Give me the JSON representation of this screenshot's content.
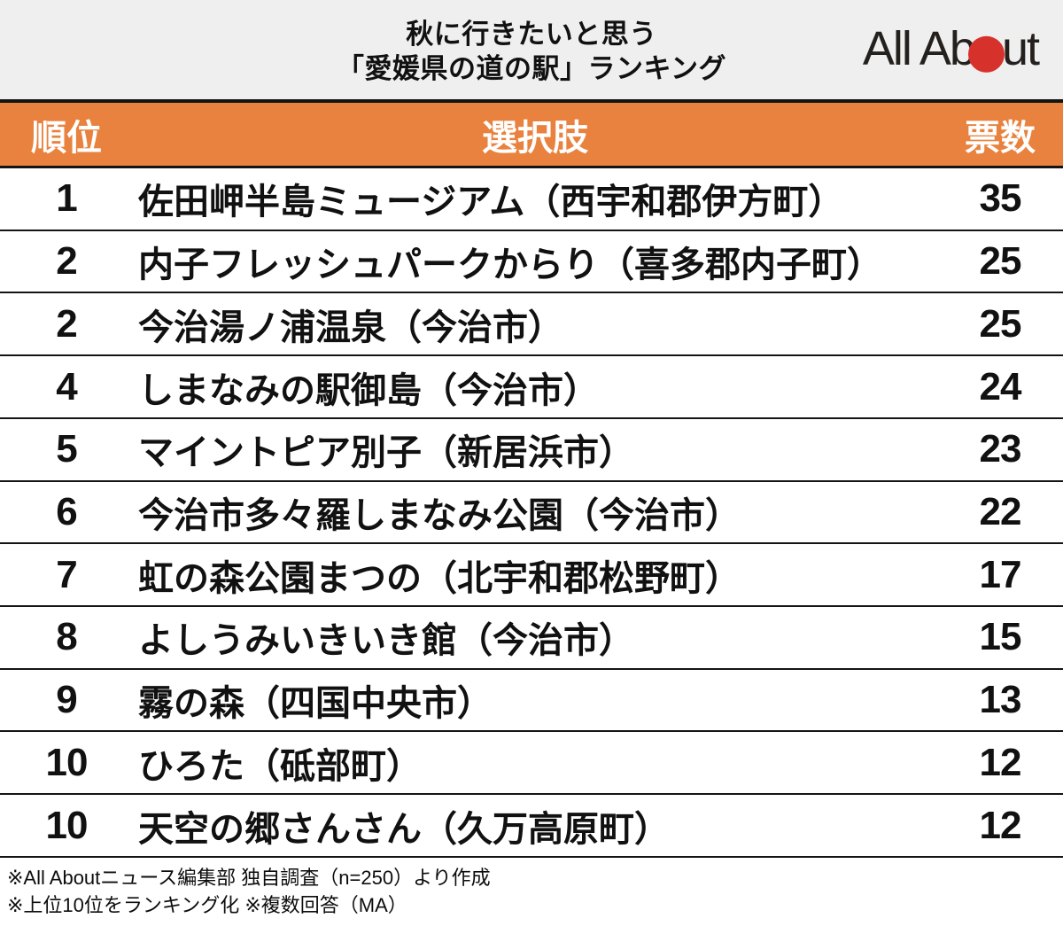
{
  "title": {
    "line1": "秋に行きたいと思う",
    "line2": "「愛媛県の道の駅」ランキング"
  },
  "logo": {
    "text_left": "All Ab",
    "text_right": "ut",
    "circle": "red-circle"
  },
  "table": {
    "headers": {
      "rank": "順位",
      "choice": "選択肢",
      "votes": "票数"
    },
    "rows": [
      {
        "rank": "1",
        "choice": "佐田岬半島ミュージアム（西宇和郡伊方町）",
        "votes": "35"
      },
      {
        "rank": "2",
        "choice": "内子フレッシュパークからり（喜多郡内子町）",
        "votes": "25"
      },
      {
        "rank": "2",
        "choice": "今治湯ノ浦温泉（今治市）",
        "votes": "25"
      },
      {
        "rank": "4",
        "choice": "しまなみの駅御島（今治市）",
        "votes": "24"
      },
      {
        "rank": "5",
        "choice": "マイントピア別子（新居浜市）",
        "votes": "23"
      },
      {
        "rank": "6",
        "choice": "今治市多々羅しまなみ公園（今治市）",
        "votes": "22"
      },
      {
        "rank": "7",
        "choice": "虹の森公園まつの（北宇和郡松野町）",
        "votes": "17"
      },
      {
        "rank": "8",
        "choice": "よしうみいきいき館（今治市）",
        "votes": "15"
      },
      {
        "rank": "9",
        "choice": "霧の森（四国中央市）",
        "votes": "13"
      },
      {
        "rank": "10",
        "choice": "ひろた（砥部町）",
        "votes": "12"
      },
      {
        "rank": "10",
        "choice": "天空の郷さんさん（久万高原町）",
        "votes": "12"
      }
    ]
  },
  "footer": {
    "note1": "※All Aboutニュース編集部 独自調査（n=250）より作成",
    "note2": "※上位10位をランキング化 ※複数回答（MA）"
  },
  "colors": {
    "accent_orange": "#E8823E",
    "header_band_gray": "#EFEFEF",
    "logo_red": "#D7312B",
    "divider": "#141414"
  },
  "chart_data": {
    "type": "table",
    "title": "秋に行きたいと思う「愛媛県の道の駅」ランキング",
    "columns": [
      "順位",
      "選択肢",
      "票数"
    ],
    "rows": [
      [
        1,
        "佐田岬半島ミュージアム（西宇和郡伊方町）",
        35
      ],
      [
        2,
        "内子フレッシュパークからり（喜多郡内子町）",
        25
      ],
      [
        2,
        "今治湯ノ浦温泉（今治市）",
        25
      ],
      [
        4,
        "しまなみの駅御島（今治市）",
        24
      ],
      [
        5,
        "マイントピア別子（新居浜市）",
        23
      ],
      [
        6,
        "今治市多々羅しまなみ公園（今治市）",
        22
      ],
      [
        7,
        "虹の森公園まつの（北宇和郡松野町）",
        17
      ],
      [
        8,
        "よしうみいきいき館（今治市）",
        15
      ],
      [
        9,
        "霧の森（四国中央市）",
        13
      ],
      [
        10,
        "ひろた（砥部町）",
        12
      ],
      [
        10,
        "天空の郷さんさん（久万高原町）",
        12
      ]
    ],
    "notes": [
      "※All Aboutニュース編集部 独自調査（n=250）より作成",
      "※上位10位をランキング化 ※複数回答（MA）"
    ]
  }
}
